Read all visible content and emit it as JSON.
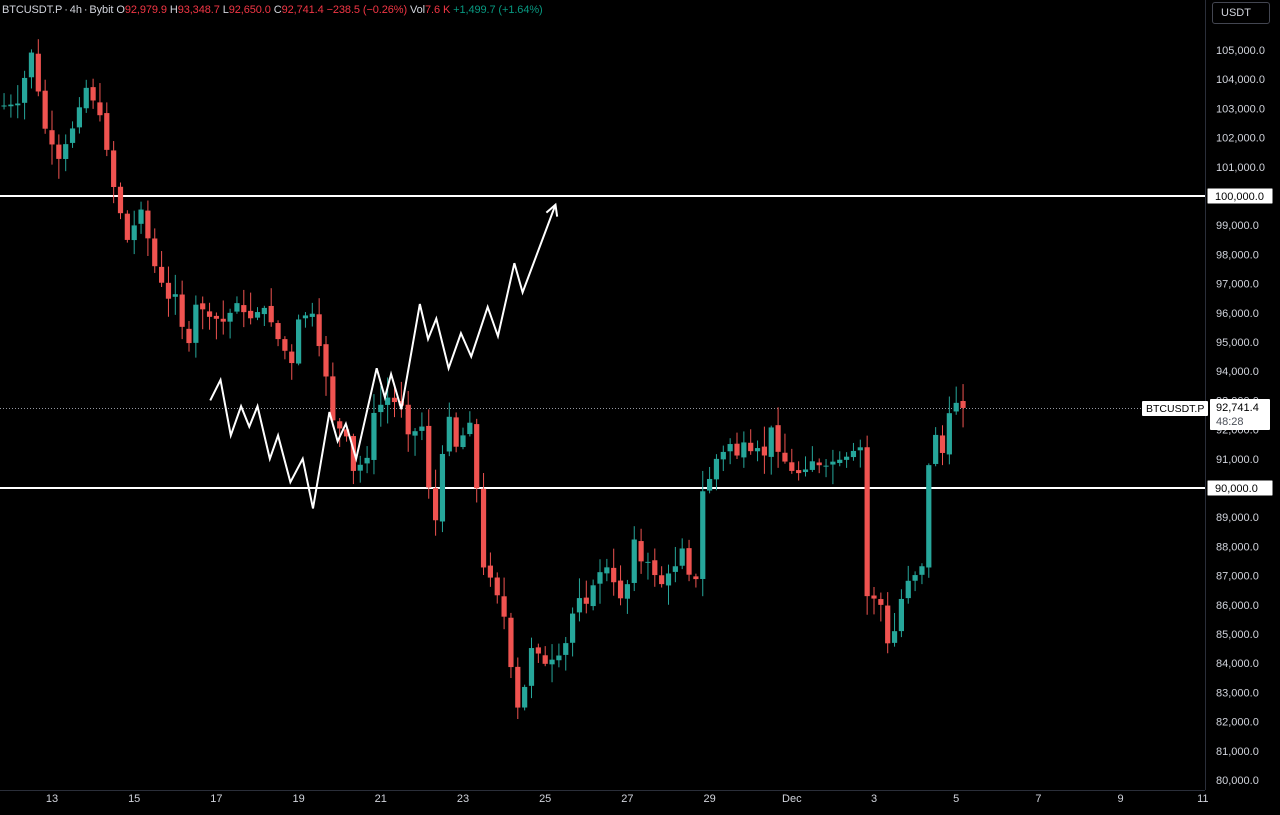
{
  "legend": {
    "symbol": "BTCUSDT.P",
    "interval": "4h",
    "exchange": "Bybit",
    "open_label": "O",
    "open": "92,979.9",
    "high_label": "H",
    "high": "93,348.7",
    "low_label": "L",
    "low": "92,650.0",
    "close_label": "C",
    "close": "92,741.4",
    "change": "−238.5 (−0.26%)",
    "vol_label": "Vol",
    "vol": "7.6 K",
    "vol_change": "+1,499.7 (+1.64%)"
  },
  "currency_button": "USDT",
  "price_tag": {
    "symbol": "BTCUSDT.P",
    "price": "92,741.4",
    "countdown": "48:28"
  },
  "level_tags": [
    "100,000.0",
    "90,000.0"
  ],
  "colors": {
    "up": "#26a69a",
    "down": "#ef5350",
    "bg": "#000000",
    "lines": "#ffffff"
  },
  "chart_data": {
    "type": "candlestick",
    "ylim": [
      80000,
      105800
    ],
    "y_ticks": [
      80000,
      81000,
      82000,
      83000,
      84000,
      85000,
      86000,
      87000,
      88000,
      89000,
      90000,
      91000,
      92000,
      93000,
      94000,
      95000,
      96000,
      97000,
      98000,
      99000,
      100000,
      101000,
      102000,
      103000,
      104000,
      105000
    ],
    "y_tick_labels": [
      "80,000.0",
      "81,000.0",
      "82,000.0",
      "83,000.0",
      "84,000.0",
      "85,000.0",
      "86,000.0",
      "87,000.0",
      "88,000.0",
      "89,000.0",
      "90,000.0",
      "91,000.0",
      "92,000.0",
      "93,000.0",
      "94,000.0",
      "95,000.0",
      "96,000.0",
      "97,000.0",
      "98,000.0",
      "99,000.0",
      "100,000.0",
      "101,000.0",
      "102,000.0",
      "103,000.0",
      "104,000.0",
      "105,000.0"
    ],
    "x_ticks": [
      {
        "label": "13",
        "day": 0
      },
      {
        "label": "15",
        "day": 2
      },
      {
        "label": "17",
        "day": 4
      },
      {
        "label": "19",
        "day": 6
      },
      {
        "label": "21",
        "day": 8
      },
      {
        "label": "23",
        "day": 10
      },
      {
        "label": "25",
        "day": 12
      },
      {
        "label": "27",
        "day": 14
      },
      {
        "label": "29",
        "day": 16
      },
      {
        "label": "Dec",
        "day": 18
      },
      {
        "label": "3",
        "day": 20
      },
      {
        "label": "5",
        "day": 22
      },
      {
        "label": "7",
        "day": 24
      },
      {
        "label": "9",
        "day": 26
      },
      {
        "label": "11",
        "day": 28
      }
    ],
    "horizontal_levels": [
      100000,
      90000
    ],
    "last_price": 92741.4,
    "keypoints": [
      [
        -7,
        103100
      ],
      [
        -5,
        103200
      ],
      [
        -3,
        104900
      ],
      [
        -1,
        102300
      ],
      [
        1,
        101300
      ],
      [
        3,
        102300
      ],
      [
        5,
        103700
      ],
      [
        7,
        102800
      ],
      [
        9,
        100300
      ],
      [
        11,
        98500
      ],
      [
        13,
        99500
      ],
      [
        15,
        97600
      ],
      [
        17,
        96500
      ],
      [
        18,
        96600
      ],
      [
        19,
        95500
      ],
      [
        20,
        95000
      ],
      [
        21,
        96300
      ],
      [
        23,
        95900
      ],
      [
        25,
        95700
      ],
      [
        27,
        96300
      ],
      [
        29,
        95800
      ],
      [
        31,
        96200
      ],
      [
        33,
        95100
      ],
      [
        35,
        94300
      ],
      [
        36,
        95800
      ],
      [
        38,
        96000
      ],
      [
        40,
        93800
      ],
      [
        41,
        92300
      ],
      [
        43,
        91800
      ],
      [
        44,
        90600
      ],
      [
        46,
        91000
      ],
      [
        47,
        92600
      ],
      [
        49,
        93100
      ],
      [
        51,
        92800
      ],
      [
        52,
        91800
      ],
      [
        54,
        92100
      ],
      [
        55,
        90000
      ],
      [
        56,
        88900
      ],
      [
        57,
        91200
      ],
      [
        58,
        92400
      ],
      [
        59,
        91400
      ],
      [
        61,
        92200
      ],
      [
        62,
        90000
      ],
      [
        63,
        87300
      ],
      [
        64,
        86900
      ],
      [
        65,
        86300
      ],
      [
        66,
        85600
      ],
      [
        67,
        83900
      ],
      [
        68,
        82500
      ],
      [
        69,
        83200
      ],
      [
        70,
        84500
      ],
      [
        71,
        84300
      ],
      [
        72,
        84000
      ],
      [
        74,
        84300
      ],
      [
        75,
        84700
      ],
      [
        76,
        85700
      ],
      [
        77,
        86200
      ],
      [
        78,
        86000
      ],
      [
        79,
        86700
      ],
      [
        80,
        87100
      ],
      [
        81,
        87300
      ],
      [
        82,
        86800
      ],
      [
        83,
        86200
      ],
      [
        84,
        86700
      ],
      [
        85,
        88200
      ],
      [
        86,
        87500
      ],
      [
        87,
        87500
      ],
      [
        88,
        87000
      ],
      [
        89,
        86700
      ],
      [
        90,
        87100
      ],
      [
        91,
        87300
      ],
      [
        92,
        87900
      ],
      [
        93,
        87000
      ],
      [
        94,
        86900
      ],
      [
        95,
        89900
      ],
      [
        96,
        90300
      ],
      [
        97,
        91000
      ],
      [
        99,
        91500
      ],
      [
        100,
        91100
      ],
      [
        101,
        91600
      ],
      [
        102,
        91300
      ],
      [
        103,
        91400
      ],
      [
        104,
        91100
      ],
      [
        105,
        92100
      ],
      [
        106,
        91200
      ],
      [
        107,
        90900
      ],
      [
        108,
        90600
      ],
      [
        109,
        90500
      ],
      [
        110,
        90600
      ],
      [
        111,
        90900
      ],
      [
        112,
        90800
      ],
      [
        113,
        90800
      ],
      [
        114,
        90900
      ],
      [
        115,
        91000
      ],
      [
        116,
        91100
      ],
      [
        117,
        91300
      ],
      [
        118,
        91400
      ],
      [
        119,
        86300
      ],
      [
        120,
        86200
      ],
      [
        121,
        86000
      ],
      [
        122,
        84700
      ],
      [
        123,
        85100
      ],
      [
        124,
        86200
      ],
      [
        125,
        86800
      ],
      [
        126,
        87000
      ],
      [
        127,
        87300
      ],
      [
        128,
        90800
      ],
      [
        129,
        91800
      ],
      [
        130,
        91200
      ],
      [
        131,
        92600
      ],
      [
        132,
        92900
      ],
      [
        133,
        92741.4
      ]
    ],
    "projection": [
      [
        3.85,
        93000
      ],
      [
        4.1,
        93700
      ],
      [
        4.35,
        91800
      ],
      [
        4.6,
        92800
      ],
      [
        4.8,
        92100
      ],
      [
        5.0,
        92800
      ],
      [
        5.3,
        91000
      ],
      [
        5.5,
        91800
      ],
      [
        5.8,
        90200
      ],
      [
        6.1,
        91000
      ],
      [
        6.35,
        89300
      ],
      [
        6.75,
        92600
      ],
      [
        6.95,
        91600
      ],
      [
        7.15,
        92200
      ],
      [
        7.4,
        91000
      ],
      [
        7.9,
        94100
      ],
      [
        8.1,
        93100
      ],
      [
        8.25,
        93900
      ],
      [
        8.5,
        92700
      ],
      [
        8.95,
        96300
      ],
      [
        9.15,
        95100
      ],
      [
        9.35,
        95800
      ],
      [
        9.65,
        94100
      ],
      [
        9.95,
        95300
      ],
      [
        10.2,
        94500
      ],
      [
        10.6,
        96200
      ],
      [
        10.85,
        95200
      ],
      [
        11.25,
        97700
      ],
      [
        11.45,
        96700
      ],
      [
        12.25,
        99700
      ]
    ]
  }
}
